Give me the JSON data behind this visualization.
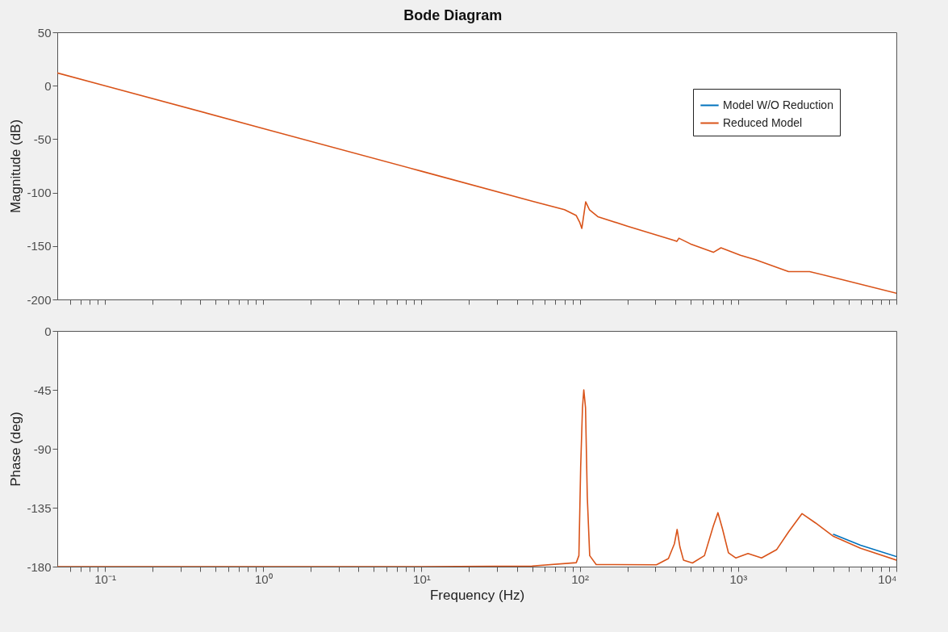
{
  "chart_data": [
    {
      "type": "line",
      "title": "Bode Diagram",
      "ylabel": "Magnitude (dB)",
      "log": "x",
      "grid": false,
      "legend": "top right",
      "tick_labels": "y",
      "line_style": "solid",
      "marker": "none",
      "x": [
        0.05,
        0.1,
        1,
        10,
        50,
        80,
        95,
        100,
        103,
        109,
        115,
        130,
        200,
        397,
        410,
        423,
        500,
        698,
        780,
        1035,
        1288,
        2084,
        2830,
        4010,
        10000
      ],
      "xlim": [
        0.05,
        10000
      ],
      "xticks": [
        {
          "value": 0.06,
          "label": null
        },
        {
          "value": 0.07,
          "label": null
        },
        {
          "value": 0.08,
          "label": null
        },
        {
          "value": 0.09,
          "label": null
        },
        {
          "value": 0.1,
          "label": null
        },
        {
          "value": 0.2,
          "label": null
        },
        {
          "value": 0.3,
          "label": null
        },
        {
          "value": 0.4,
          "label": null
        },
        {
          "value": 0.5,
          "label": null
        },
        {
          "value": 0.6,
          "label": null
        },
        {
          "value": 0.7,
          "label": null
        },
        {
          "value": 0.8,
          "label": null
        },
        {
          "value": 0.9,
          "label": null
        },
        {
          "value": 1,
          "label": null
        },
        {
          "value": 2,
          "label": null
        },
        {
          "value": 3,
          "label": null
        },
        {
          "value": 4,
          "label": null
        },
        {
          "value": 5,
          "label": null
        },
        {
          "value": 6,
          "label": null
        },
        {
          "value": 7,
          "label": null
        },
        {
          "value": 8,
          "label": null
        },
        {
          "value": 9,
          "label": null
        },
        {
          "value": 10,
          "label": null
        },
        {
          "value": 20,
          "label": null
        },
        {
          "value": 30,
          "label": null
        },
        {
          "value": 40,
          "label": null
        },
        {
          "value": 50,
          "label": null
        },
        {
          "value": 60,
          "label": null
        },
        {
          "value": 70,
          "label": null
        },
        {
          "value": 80,
          "label": null
        },
        {
          "value": 90,
          "label": null
        },
        {
          "value": 100,
          "label": null
        },
        {
          "value": 200,
          "label": null
        },
        {
          "value": 300,
          "label": null
        },
        {
          "value": 400,
          "label": null
        },
        {
          "value": 500,
          "label": null
        },
        {
          "value": 600,
          "label": null
        },
        {
          "value": 700,
          "label": null
        },
        {
          "value": 800,
          "label": null
        },
        {
          "value": 900,
          "label": null
        },
        {
          "value": 1000,
          "label": null
        },
        {
          "value": 2000,
          "label": null
        },
        {
          "value": 3000,
          "label": null
        },
        {
          "value": 4000,
          "label": null
        },
        {
          "value": 5000,
          "label": null
        },
        {
          "value": 6000,
          "label": null
        },
        {
          "value": 7000,
          "label": null
        },
        {
          "value": 8000,
          "label": null
        },
        {
          "value": 9000,
          "label": null
        },
        {
          "value": 10000,
          "label": null
        }
      ],
      "ylim": [
        -200,
        50
      ],
      "yticks": [
        -200,
        -150,
        -100,
        -50,
        0,
        50
      ],
      "series": [
        {
          "name": "Model W/O Reduction",
          "color": "#0072bd",
          "values": [
            null,
            null,
            null,
            null,
            null,
            null,
            null,
            null,
            null,
            null,
            null,
            null,
            null,
            null,
            null,
            null,
            null,
            null,
            null,
            null,
            null,
            null,
            null,
            null,
            null
          ]
        },
        {
          "name": "Reduced Model",
          "color": "#d95319",
          "values": [
            12,
            0,
            -40,
            -80,
            -108,
            -116,
            -121.5,
            -128,
            -133.5,
            -108.6,
            -116,
            -122.5,
            -131.5,
            -144.9,
            -145.7,
            -142.7,
            -148,
            -155.9,
            -151.7,
            -158.6,
            -162.8,
            -173.9,
            -173.9,
            -179.4,
            -194.2
          ]
        }
      ]
    },
    {
      "type": "line",
      "xlabel": "Frequency  (Hz)",
      "ylabel": "Phase (deg)",
      "log": "x",
      "grid": false,
      "legend": false,
      "line_style": "solid",
      "marker": "none",
      "x": [
        0.05,
        10,
        50,
        95,
        98.7,
        101.3,
        104,
        106,
        108.7,
        111.5,
        115.5,
        127,
        305,
        363,
        396,
        412,
        429,
        452,
        515,
        613,
        698,
        746,
        797,
        869,
        969,
        1155,
        1407,
        1750,
        2084,
        2536,
        3090,
        4010,
        5940,
        10000
      ],
      "xlim": [
        0.05,
        10000
      ],
      "xticks": [
        {
          "value": 0.06,
          "label": null
        },
        {
          "value": 0.07,
          "label": null
        },
        {
          "value": 0.08,
          "label": null
        },
        {
          "value": 0.09,
          "label": null
        },
        {
          "value": 0.1,
          "label": "10⁻¹"
        },
        {
          "value": 0.2,
          "label": null
        },
        {
          "value": 0.3,
          "label": null
        },
        {
          "value": 0.4,
          "label": null
        },
        {
          "value": 0.5,
          "label": null
        },
        {
          "value": 0.6,
          "label": null
        },
        {
          "value": 0.7,
          "label": null
        },
        {
          "value": 0.8,
          "label": null
        },
        {
          "value": 0.9,
          "label": null
        },
        {
          "value": 1,
          "label": "10⁰"
        },
        {
          "value": 2,
          "label": null
        },
        {
          "value": 3,
          "label": null
        },
        {
          "value": 4,
          "label": null
        },
        {
          "value": 5,
          "label": null
        },
        {
          "value": 6,
          "label": null
        },
        {
          "value": 7,
          "label": null
        },
        {
          "value": 8,
          "label": null
        },
        {
          "value": 9,
          "label": null
        },
        {
          "value": 10,
          "label": "10¹"
        },
        {
          "value": 20,
          "label": null
        },
        {
          "value": 30,
          "label": null
        },
        {
          "value": 40,
          "label": null
        },
        {
          "value": 50,
          "label": null
        },
        {
          "value": 60,
          "label": null
        },
        {
          "value": 70,
          "label": null
        },
        {
          "value": 80,
          "label": null
        },
        {
          "value": 90,
          "label": null
        },
        {
          "value": 100,
          "label": "10²"
        },
        {
          "value": 200,
          "label": null
        },
        {
          "value": 300,
          "label": null
        },
        {
          "value": 400,
          "label": null
        },
        {
          "value": 500,
          "label": null
        },
        {
          "value": 600,
          "label": null
        },
        {
          "value": 700,
          "label": null
        },
        {
          "value": 800,
          "label": null
        },
        {
          "value": 900,
          "label": null
        },
        {
          "value": 1000,
          "label": "10³"
        },
        {
          "value": 2000,
          "label": null
        },
        {
          "value": 3000,
          "label": null
        },
        {
          "value": 4000,
          "label": null
        },
        {
          "value": 5000,
          "label": null
        },
        {
          "value": 6000,
          "label": null
        },
        {
          "value": 7000,
          "label": null
        },
        {
          "value": 8000,
          "label": null
        },
        {
          "value": 9000,
          "label": null
        },
        {
          "value": 10000,
          "label": "10⁴"
        }
      ],
      "ylim": [
        -180,
        0
      ],
      "yticks": [
        -180,
        -135,
        -90,
        -45,
        0
      ],
      "series": [
        {
          "color": "#0072bd",
          "values": [
            null,
            null,
            null,
            null,
            null,
            null,
            null,
            null,
            null,
            null,
            null,
            null,
            null,
            null,
            null,
            null,
            null,
            null,
            null,
            null,
            null,
            null,
            null,
            null,
            null,
            null,
            null,
            null,
            null,
            null,
            null,
            -155.4,
            -163.7,
            -172.3
          ]
        },
        {
          "color": "#d95319",
          "values": [
            -180,
            -180,
            -179.5,
            -177,
            -171.6,
            -103.8,
            -58.6,
            -45,
            -58.6,
            -126.4,
            -171.6,
            -178.4,
            -178.6,
            -173.8,
            -162.6,
            -151.6,
            -164.9,
            -175,
            -177.2,
            -171.6,
            -148.9,
            -138.8,
            -151.2,
            -169.4,
            -173.4,
            -170,
            -173.4,
            -167.1,
            -153.5,
            -139.5,
            -146.7,
            -156.9,
            -166,
            -175
          ]
        }
      ]
    }
  ]
}
